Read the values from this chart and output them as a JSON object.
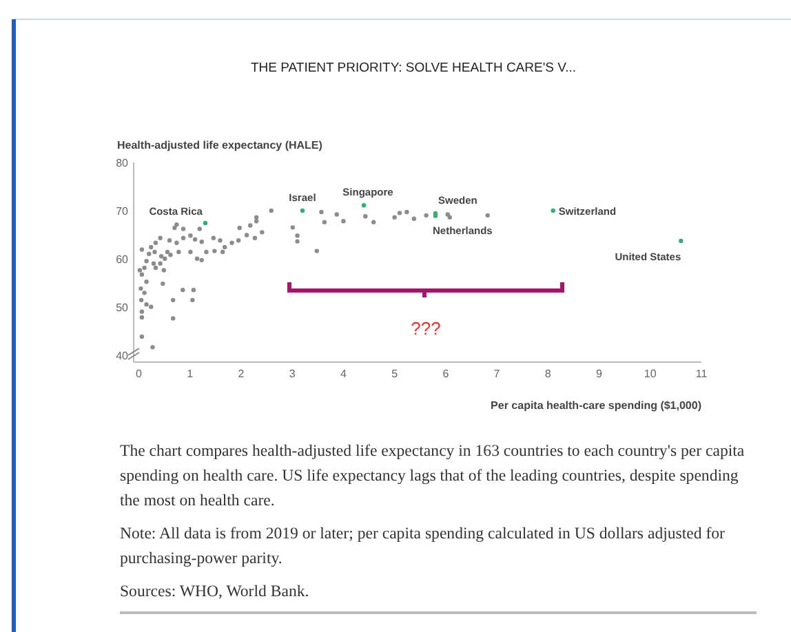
{
  "chart_data": {
    "type": "scatter",
    "title": "THE PATIENT PRIORITY: SOLVE HEALTH CARE'S V...",
    "ylabel": "Health-adjusted life expectancy (HALE)",
    "xlabel": "Per capita health-care spending ($1,000)",
    "xlim": [
      -0.1,
      11
    ],
    "xticks": [
      0,
      1,
      2,
      3,
      4,
      5,
      6,
      7,
      8,
      9,
      10,
      11
    ],
    "ylim": [
      38.5,
      80
    ],
    "yticks": [
      40,
      50,
      60,
      70,
      80
    ],
    "grid": false,
    "marker": "circle",
    "series": [
      {
        "color": "#8c8c8c",
        "x": [
          0.06,
          0.02,
          0.06,
          0.06,
          0.27,
          0.67,
          0.67,
          0.86,
          1.07,
          1.05,
          0.47,
          0.7,
          0.74,
          2.59,
          2.3,
          2.3,
          2.18,
          3.01,
          3.1,
          3.1,
          3.48,
          3.57,
          3.63,
          3.87,
          4.0,
          4.43,
          4.59,
          5.0,
          5.1,
          5.24,
          5.38,
          5.62,
          6.04,
          6.08,
          6.82,
          0.42,
          0.33,
          0.24,
          0.31,
          0.2,
          0.15,
          0.29,
          0.11,
          0.33,
          0.06,
          0.15,
          0.04,
          0.11,
          0.05,
          0.15,
          0.24,
          0.06,
          0.42,
          0.49,
          0.56,
          0.6,
          0.74,
          0.87,
          0.87,
          1.01,
          1.1,
          1.19,
          1.23,
          1.01,
          1.14,
          1.23,
          1.32,
          1.46,
          1.59,
          1.48,
          1.64,
          1.68,
          1.82,
          1.95,
          1.97,
          2.11,
          2.27,
          2.41,
          0.44,
          0.62,
          0.78,
          0.51
        ],
        "values": [
          61.9,
          57.6,
          47.8,
          43.8,
          41.6,
          51.4,
          47.6,
          53.5,
          53.5,
          51.4,
          54.8,
          66.4,
          67.1,
          70,
          68.6,
          67.8,
          66.9,
          66.5,
          64.8,
          63.6,
          61.6,
          69.7,
          67.6,
          69.2,
          67.8,
          68.8,
          67.6,
          68.6,
          69.5,
          69.7,
          68.3,
          69,
          69.2,
          68.6,
          69,
          64.3,
          63.3,
          62.4,
          61.4,
          61,
          59.5,
          59,
          58.1,
          58.1,
          56.7,
          55.2,
          53.8,
          52.9,
          51.4,
          50.5,
          50,
          49,
          59,
          57.6,
          61.4,
          63.8,
          63.3,
          64.3,
          66.2,
          64.8,
          64,
          66.2,
          63.5,
          61.4,
          60,
          59.7,
          61.4,
          64.3,
          63.8,
          61.6,
          61.4,
          62.4,
          63.3,
          63.8,
          66.4,
          64.9,
          64.3,
          65.5,
          60.5,
          60.8,
          61.4,
          60
        ]
      },
      {
        "color": "#2db36b",
        "x": [
          1.3,
          3.2,
          4.4,
          5.8,
          5.8,
          8.1,
          10.6
        ],
        "values": [
          67.4,
          70,
          71.1,
          69.4,
          68.9,
          70,
          63.7
        ]
      }
    ],
    "annotations": [
      {
        "text": "Costa Rica",
        "x": 1.3,
        "y": 67.4
      },
      {
        "text": "Israel",
        "x": 3.2,
        "y": 70
      },
      {
        "text": "Singapore",
        "x": 4.4,
        "y": 71.1
      },
      {
        "text": "Sweden",
        "x": 5.8,
        "y": 69.4
      },
      {
        "text": "Netherlands",
        "x": 5.8,
        "y": 68.9
      },
      {
        "text": "Switzerland",
        "x": 8.1,
        "y": 70
      },
      {
        "text": "United States",
        "x": 10.6,
        "y": 63.7
      },
      "???",
      "The chart compares health-adjusted life expectancy in 163 countries to each country's per capita spending on health care. US life expectancy lags that of the leading countries, despite spending the most on health care.",
      "Note: All data is from 2019 or later; per capita spending calculated in US dollars adjusted for purchasing-power parity.",
      "Sources: WHO, World Bank."
    ]
  }
}
